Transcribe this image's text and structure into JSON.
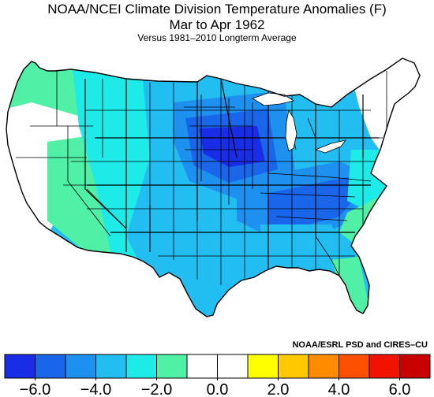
{
  "header": {
    "title": "NOAA/NCEI Climate Division Temperature Anomalies (F)",
    "period": "Mar to Apr 1962",
    "baseline": "Versus 1981–2010 Longterm Average"
  },
  "credit": "NOAA/ESRL PSD and CIRES–CU",
  "colorbar": {
    "bins": [
      {
        "from": -7.0,
        "to": -6.0,
        "color": "#1a2de6"
      },
      {
        "from": -6.0,
        "to": -5.0,
        "color": "#1a66eb"
      },
      {
        "from": -5.0,
        "to": -4.0,
        "color": "#1e90f0"
      },
      {
        "from": -4.0,
        "to": -3.0,
        "color": "#22bef2"
      },
      {
        "from": -3.0,
        "to": -2.0,
        "color": "#1eebe8"
      },
      {
        "from": -2.0,
        "to": -1.0,
        "color": "#50f0a6"
      },
      {
        "from": -1.0,
        "to": 0.0,
        "color": "#ffffff"
      },
      {
        "from": 0.0,
        "to": 1.0,
        "color": "#ffffff"
      },
      {
        "from": 1.0,
        "to": 2.0,
        "color": "#ffff00"
      },
      {
        "from": 2.0,
        "to": 3.0,
        "color": "#ffc800"
      },
      {
        "from": 3.0,
        "to": 4.0,
        "color": "#ff8c00"
      },
      {
        "from": 4.0,
        "to": 5.0,
        "color": "#ff5000"
      },
      {
        "from": 5.0,
        "to": 6.0,
        "color": "#f01400"
      },
      {
        "from": 6.0,
        "to": 7.0,
        "color": "#c80000"
      }
    ],
    "tick_labels": [
      "−6.0",
      "−4.0",
      "−2.0",
      "0.0",
      "2.0",
      "4.0",
      "6.0"
    ],
    "tick_values": [
      -6,
      -4,
      -2,
      0,
      2,
      4,
      6
    ]
  },
  "map": {
    "region": "Contiguous United States climate divisions",
    "regions_by_anomaly": [
      {
        "name": "west-coast",
        "color": "#ffffff"
      },
      {
        "name": "pacific-northwest",
        "color": "#50f0a6"
      },
      {
        "name": "great-basin-southwest",
        "color": "#50f0a6"
      },
      {
        "name": "rockies-plains",
        "color": "#1eebe8"
      },
      {
        "name": "central",
        "color": "#22bef2"
      },
      {
        "name": "upper-midwest",
        "color": "#1e90f0"
      },
      {
        "name": "minnesota-core",
        "color": "#1a66eb"
      },
      {
        "name": "minnesota-iowa-center",
        "color": "#1a2de6"
      },
      {
        "name": "ohio-valley-band",
        "color": "#1e90f0"
      },
      {
        "name": "tennessee-band",
        "color": "#1a66eb"
      },
      {
        "name": "gulf-east",
        "color": "#22bef2"
      },
      {
        "name": "mid-atlantic",
        "color": "#1eebe8"
      },
      {
        "name": "southeast-coast",
        "color": "#50f0a6"
      },
      {
        "name": "florida",
        "color": "#50f0a6"
      },
      {
        "name": "new-england",
        "color": "#ffffff"
      }
    ]
  }
}
